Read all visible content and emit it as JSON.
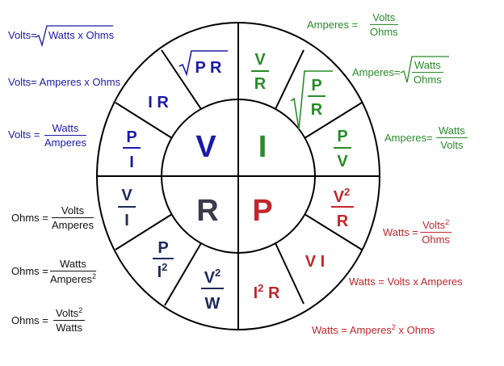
{
  "colors": {
    "volts": "#1a1aa8",
    "amperes": "#2a8a2a",
    "ohms": "#111111",
    "watts": "#c0262a",
    "lines": "#000000"
  },
  "center": {
    "V": "V",
    "I": "I",
    "R": "R",
    "P": "P"
  },
  "segments": {
    "v_pr": "P R",
    "v_ir": "I R",
    "v_p_num": "P",
    "v_p_den": "I",
    "i_v_num": "V",
    "i_v_den": "R",
    "i_pr_num": "P",
    "i_pr_den": "R",
    "i_pv_num": "P",
    "i_pv_den": "V",
    "p_v2_num": "V",
    "p_v2_sup": "2",
    "p_v2_den": "R",
    "p_vi": "V I",
    "p_i2r_i": "I",
    "p_i2r_sup": "2",
    "p_i2r_r": "R",
    "r_v2w_num": "V",
    "r_v2w_sup": "2",
    "r_v2w_den": "W",
    "r_pi2_num": "P",
    "r_pi2_den": "I",
    "r_pi2_sup": "2",
    "r_vi_num": "V",
    "r_vi_den": "I"
  },
  "equations": {
    "volts_sqrt": {
      "label": "Volts=",
      "body": "Watts x Ohms"
    },
    "volts_ai": {
      "text": "Volts= Amperes x Ohms"
    },
    "volts_wa": {
      "label": "Volts =",
      "num": "Watts",
      "den": "Amperes"
    },
    "amps_vo": {
      "label": "Amperes =",
      "num": "Volts",
      "den": "Ohms"
    },
    "amps_sqrt": {
      "label": "Amperes=",
      "num": "Watts",
      "den": "Ohms"
    },
    "amps_wv": {
      "label": "Amperes=",
      "num": "Watts",
      "den": "Volts"
    },
    "ohms_va": {
      "label": "Ohms =",
      "num": "Volts",
      "den": "Amperes"
    },
    "ohms_wa2": {
      "label": "Ohms =",
      "num": "Watts",
      "den": "Amperes",
      "sup": "2"
    },
    "ohms_v2w": {
      "label": "Ohms =",
      "num": "Volts",
      "sup": "2",
      "den": "Watts"
    },
    "watts_v2o": {
      "label": "Watts =",
      "num": "Volts",
      "sup": "2",
      "den": "Ohms"
    },
    "watts_va": {
      "text": "Watts =  Volts x Amperes"
    },
    "watts_a2o": {
      "pre": "Watts = Amperes",
      "sup": "2",
      "post": " x Ohms"
    }
  }
}
